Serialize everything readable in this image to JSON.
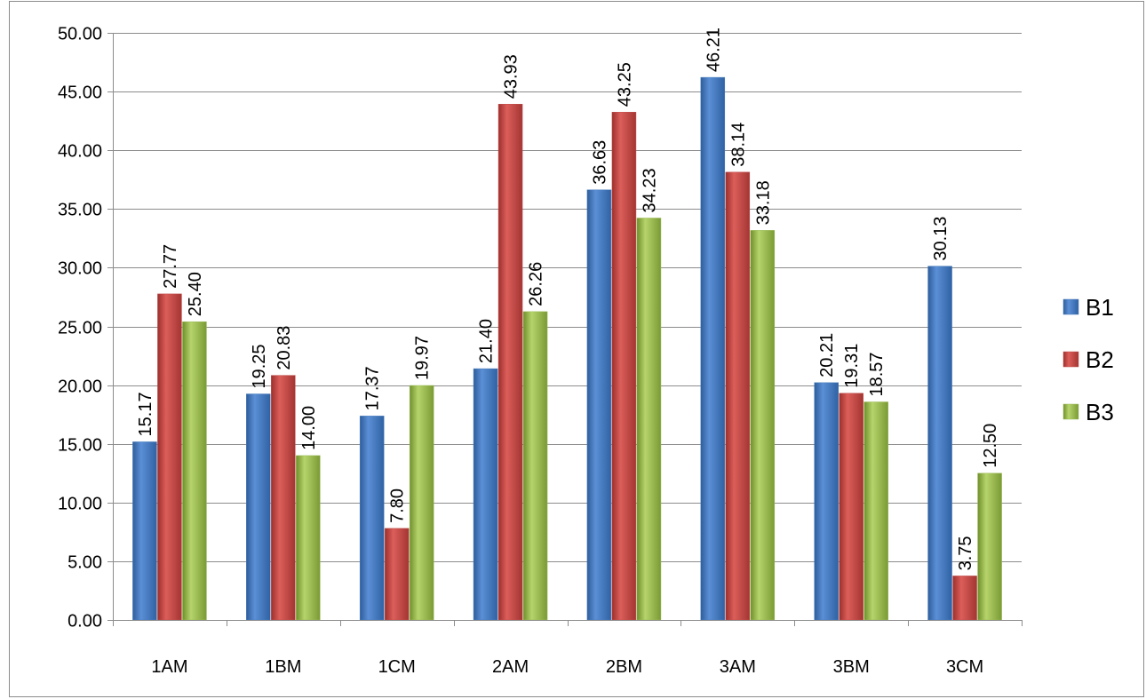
{
  "chart_data": {
    "type": "bar",
    "categories": [
      "1AM",
      "1BM",
      "1CM",
      "2AM",
      "2BM",
      "3AM",
      "3BM",
      "3CM"
    ],
    "series": [
      {
        "name": "B1",
        "values": [
          15.17,
          19.25,
          17.37,
          21.4,
          36.63,
          46.21,
          20.21,
          30.13
        ],
        "labels": [
          "15.17",
          "19.25",
          "17.37",
          "21.40",
          "36.63",
          "46.21",
          "20.21",
          "30.13"
        ]
      },
      {
        "name": "B2",
        "values": [
          27.77,
          20.83,
          7.8,
          43.93,
          43.25,
          38.14,
          19.31,
          3.75
        ],
        "labels": [
          "27.77",
          "20.83",
          "7.80",
          "43.93",
          "43.25",
          "38.14",
          "19.31",
          "3.75"
        ]
      },
      {
        "name": "B3",
        "values": [
          25.4,
          14.0,
          19.97,
          26.26,
          34.23,
          33.18,
          18.57,
          12.5
        ],
        "labels": [
          "25.40",
          "14.00",
          "19.97",
          "26.26",
          "34.23",
          "33.18",
          "18.57",
          "12.50"
        ]
      }
    ],
    "colors": [
      "#4a7ebb",
      "#c0504d",
      "#9bbb59"
    ],
    "yticks": [
      "0.00",
      "5.00",
      "10.00",
      "15.00",
      "20.00",
      "25.00",
      "30.00",
      "35.00",
      "40.00",
      "45.00",
      "50.00"
    ],
    "ylim": [
      0,
      50
    ],
    "grid": true,
    "legend": "right",
    "data_labels": "rotated-vertical"
  }
}
